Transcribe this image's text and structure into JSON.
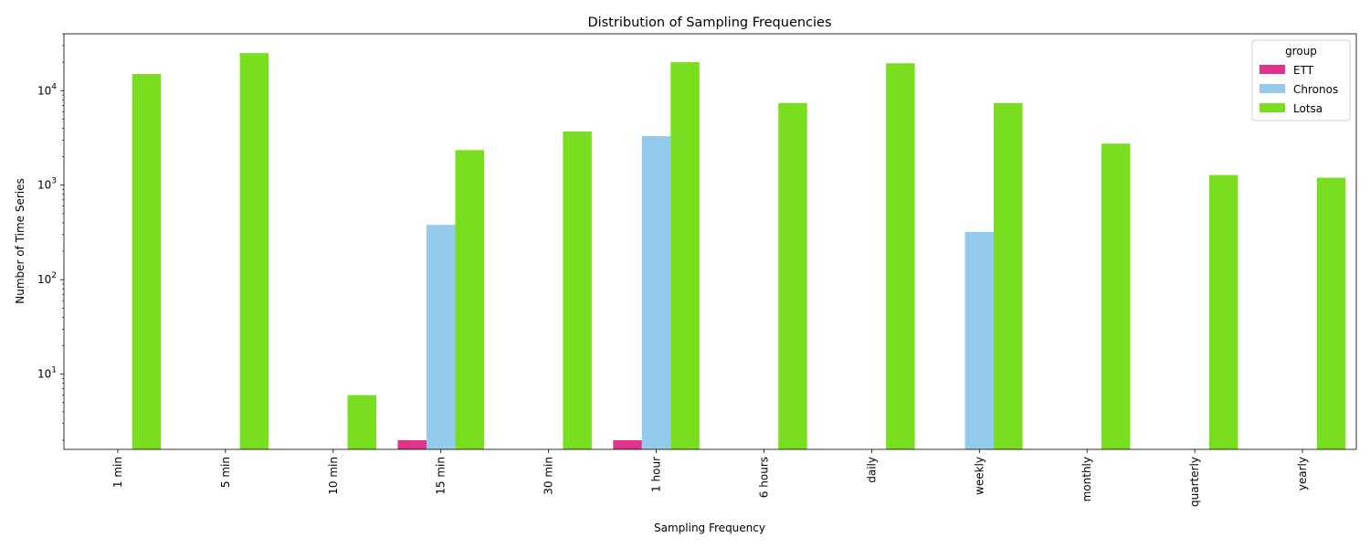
{
  "chart_data": {
    "type": "bar",
    "title": "Distribution of Sampling Frequencies",
    "xlabel": "Sampling Frequency",
    "ylabel": "Number of Time Series",
    "yscale": "log",
    "ylim": [
      1.6,
      40000
    ],
    "y_ticks": [
      10,
      100,
      1000,
      10000
    ],
    "categories": [
      "1 min",
      "5 min",
      "10 min",
      "15 min",
      "30 min",
      "1 hour",
      "6 hours",
      "daily",
      "weekly",
      "monthly",
      "quarterly",
      "yearly"
    ],
    "series": [
      {
        "name": "ETT",
        "color": "#e0338c",
        "values": [
          null,
          null,
          null,
          2,
          null,
          2,
          null,
          null,
          null,
          null,
          null,
          null
        ]
      },
      {
        "name": "Chronos",
        "color": "#94cbec",
        "values": [
          null,
          null,
          null,
          380,
          null,
          3300,
          null,
          null,
          320,
          null,
          null,
          null
        ]
      },
      {
        "name": "Lotsa",
        "color": "#7ade20",
        "values": [
          15000,
          25000,
          6,
          2350,
          3700,
          20000,
          7400,
          19500,
          7400,
          2750,
          1280,
          1200
        ]
      }
    ],
    "legend": {
      "title": "group",
      "position": "top-right"
    },
    "grid": false
  }
}
